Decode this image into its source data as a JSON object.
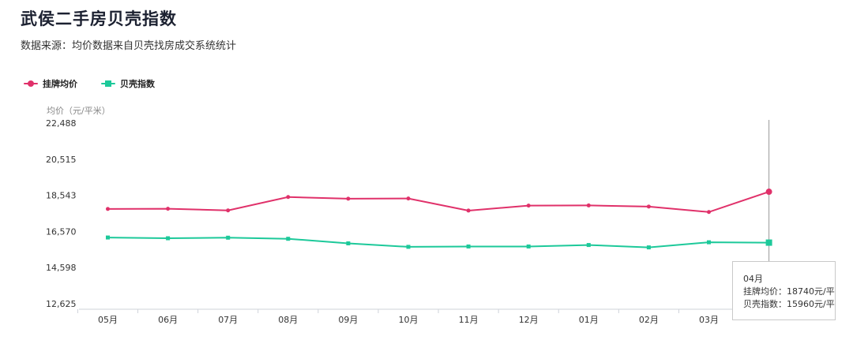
{
  "header": {
    "title": "武侯二手房贝壳指数",
    "subtitle": "数据来源：均价数据来自贝壳找房成交系统统计"
  },
  "legend": {
    "items": [
      {
        "label": "挂牌均价",
        "color": "#e0316a"
      },
      {
        "label": "贝壳指数",
        "color": "#1dc99a"
      }
    ]
  },
  "axis": {
    "unit_label": "均价（元/平米）"
  },
  "tooltip": {
    "month": "04月",
    "line1": "挂牌均价：18740元/平",
    "line2": "贝壳指数：15960元/平"
  },
  "chart_data": {
    "type": "line",
    "categories": [
      "05月",
      "06月",
      "07月",
      "08月",
      "09月",
      "10月",
      "11月",
      "12月",
      "01月",
      "02月",
      "03月",
      "04月"
    ],
    "x_tick_labels": [
      "05月",
      "06月",
      "07月",
      "08月",
      "09月",
      "10月",
      "11月",
      "12月",
      "01月",
      "02月",
      "03月"
    ],
    "ylabel": "均价（元/平米）",
    "ylim": [
      12625,
      22488
    ],
    "y_ticks": [
      12625,
      14598,
      16570,
      18543,
      20515,
      22488
    ],
    "y_tick_labels": [
      "12,625",
      "14,598",
      "16,570",
      "18,543",
      "20,515",
      "22,488"
    ],
    "grid": false,
    "legend_position": "top-left",
    "highlight_index": 11,
    "series": [
      {
        "name": "挂牌均价",
        "color": "#e0316a",
        "marker": "circle",
        "values": [
          17800,
          17810,
          17720,
          18450,
          18360,
          18370,
          17710,
          17980,
          17990,
          17930,
          17630,
          18740
        ]
      },
      {
        "name": "贝壳指数",
        "color": "#1dc99a",
        "marker": "square",
        "values": [
          16240,
          16200,
          16230,
          16170,
          15920,
          15730,
          15750,
          15750,
          15830,
          15700,
          15980,
          15960
        ]
      }
    ]
  }
}
